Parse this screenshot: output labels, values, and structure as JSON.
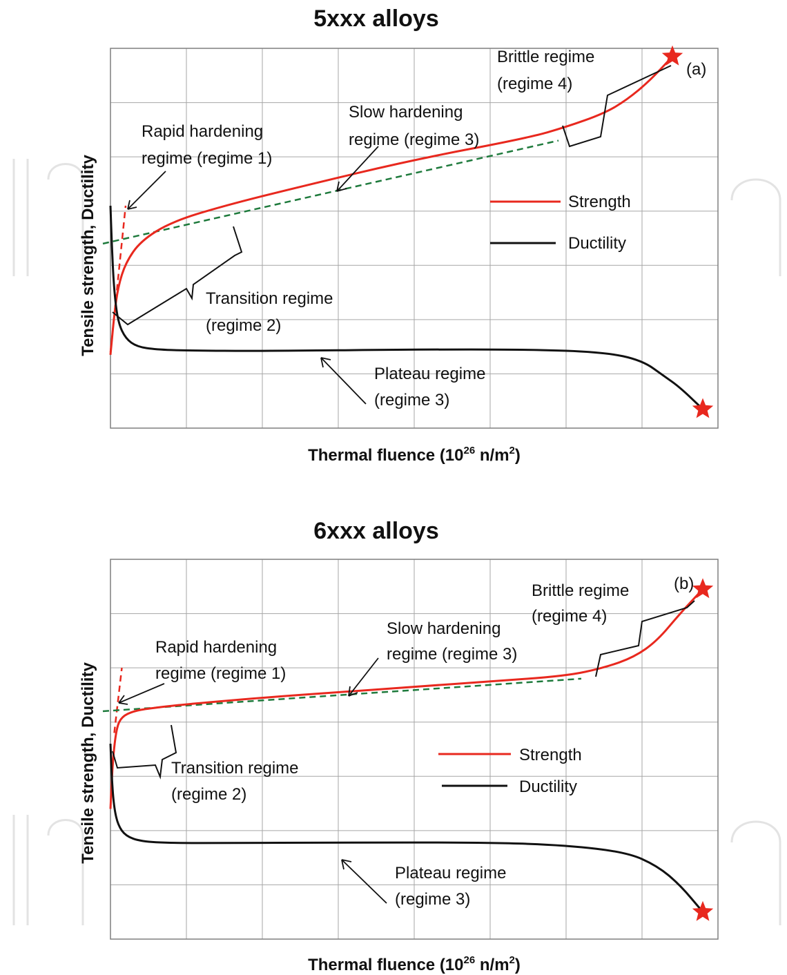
{
  "chart_data": [
    {
      "panel": "a",
      "type": "line",
      "title": "5xxx alloys",
      "xlabel": "Thermal fluence (10^26 n/m^2)",
      "xlabel_base": "Thermal fluence (10",
      "xlabel_exp": "26",
      "xlabel_mid": " n/m",
      "xlabel_exp2": "2",
      "xlabel_end": ")",
      "ylabel": "Tensile strength, Ductility",
      "panel_tag": "(a)",
      "xlim": [
        0,
        8
      ],
      "ylim": [
        0,
        7
      ],
      "grid": true,
      "legend_position": "right",
      "series": [
        {
          "name": "Strength",
          "color": "#e8281e",
          "x": [
            0.0,
            0.05,
            0.1,
            0.2,
            0.4,
            0.8,
            1.5,
            2.5,
            4.0,
            5.5,
            6.0,
            6.5,
            6.8,
            7.1,
            7.4
          ],
          "y": [
            1.35,
            2.1,
            2.6,
            3.05,
            3.45,
            3.8,
            4.1,
            4.45,
            4.95,
            5.35,
            5.55,
            5.8,
            6.05,
            6.4,
            6.85
          ],
          "end_marker": "star"
        },
        {
          "name": "Ductility",
          "color": "#111111",
          "x": [
            0.0,
            0.02,
            0.05,
            0.1,
            0.2,
            0.35,
            0.6,
            1.0,
            2.0,
            4.0,
            5.5,
            6.5,
            7.0,
            7.3,
            7.5,
            7.8
          ],
          "y": [
            4.1,
            3.3,
            2.5,
            1.95,
            1.65,
            1.5,
            1.45,
            1.43,
            1.42,
            1.45,
            1.45,
            1.4,
            1.25,
            0.95,
            0.75,
            0.35
          ],
          "end_marker": "star"
        }
      ],
      "guides": [
        {
          "color": "#e8281e",
          "style": "dashed",
          "x": [
            0.0,
            0.2
          ],
          "y": [
            1.4,
            4.1
          ]
        },
        {
          "color": "#1e7a3c",
          "style": "dashed",
          "x": [
            -0.1,
            5.9
          ],
          "y": [
            3.4,
            5.3
          ]
        }
      ],
      "annotations": [
        "Rapid hardening",
        "regime (regime 1)",
        "Slow hardening",
        "regime (regime 3)",
        "Brittle regime",
        "(regime 4)",
        "Transition regime",
        "(regime 2)",
        "Plateau regime",
        "(regime 3)"
      ]
    },
    {
      "panel": "b",
      "type": "line",
      "title": "6xxx alloys",
      "xlabel": "Thermal fluence (10^26 n/m^2)",
      "xlabel_base": "Thermal fluence (10",
      "xlabel_exp": "26",
      "xlabel_mid": " n/m",
      "xlabel_exp2": "2",
      "xlabel_end": ")",
      "ylabel": "Tensile strength, Ductility",
      "panel_tag": "(b)",
      "xlim": [
        0,
        8
      ],
      "ylim": [
        0,
        7
      ],
      "grid": true,
      "legend_position": "right",
      "series": [
        {
          "name": "Strength",
          "color": "#e8281e",
          "x": [
            0.0,
            0.03,
            0.08,
            0.15,
            0.3,
            0.5,
            1.0,
            2.0,
            3.0,
            4.0,
            5.0,
            6.0,
            6.5,
            6.9,
            7.2,
            7.5,
            7.8
          ],
          "y": [
            2.4,
            3.3,
            3.9,
            4.1,
            4.2,
            4.25,
            4.33,
            4.45,
            4.55,
            4.65,
            4.75,
            4.85,
            5.0,
            5.2,
            5.5,
            6.0,
            6.45
          ],
          "end_marker": "star"
        },
        {
          "name": "Ductility",
          "color": "#111111",
          "x": [
            0.0,
            0.02,
            0.05,
            0.1,
            0.2,
            0.4,
            0.8,
            1.5,
            3.0,
            5.0,
            6.0,
            6.8,
            7.2,
            7.5,
            7.8
          ],
          "y": [
            3.6,
            2.9,
            2.4,
            2.1,
            1.9,
            1.8,
            1.77,
            1.77,
            1.78,
            1.78,
            1.73,
            1.6,
            1.35,
            1.0,
            0.5
          ],
          "end_marker": "star"
        }
      ],
      "guides": [
        {
          "color": "#e8281e",
          "style": "dashed",
          "x": [
            0.05,
            0.15
          ],
          "y": [
            3.8,
            5.0
          ]
        },
        {
          "color": "#1e7a3c",
          "style": "dashed",
          "x": [
            -0.1,
            6.2
          ],
          "y": [
            4.2,
            4.8
          ]
        }
      ],
      "annotations": [
        "Rapid hardening",
        "regime (regime 1)",
        "Slow hardening",
        "regime (regime 3)",
        "Brittle regime",
        "(regime 4)",
        "Transition regime",
        "(regime 2)",
        "Plateau regime",
        "(regime 3)"
      ]
    }
  ]
}
